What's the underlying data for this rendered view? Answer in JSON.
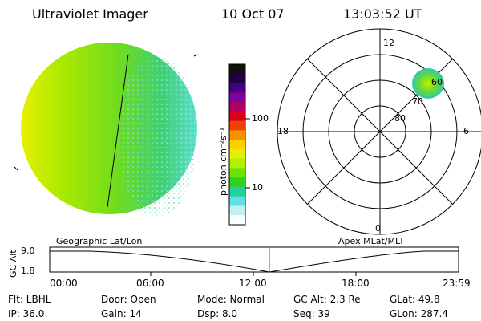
{
  "header": {
    "instrument": "Ultraviolet Imager",
    "date": "10 Oct 07",
    "time": "13:03:52 UT"
  },
  "colorbar": {
    "unit_label": "photon cm⁻²s⁻¹",
    "ticks": [
      "100",
      "10"
    ],
    "colors": [
      "#101010",
      "#200040",
      "#400080",
      "#8000a0",
      "#b00060",
      "#d80020",
      "#f04000",
      "#f89000",
      "#f8d000",
      "#e0f000",
      "#b0f000",
      "#70e000",
      "#30d020",
      "#20d0a0",
      "#60e0e0",
      "#c0f0f0",
      "#ffffff"
    ]
  },
  "polar": {
    "mlt_labels": {
      "top": "12",
      "left": "18",
      "right": "6",
      "bottom": "0"
    },
    "lat_labels": [
      "60",
      "70",
      "80"
    ]
  },
  "timeline": {
    "left_label": "Geographic Lat/Lon",
    "right_label": "Apex MLat/MLT",
    "axis_title": "GC Alt",
    "y_ticks": [
      "9.0",
      "1.8"
    ],
    "x_ticks": [
      "00:00",
      "06:00",
      "12:00",
      "18:00",
      "23:59"
    ],
    "marker_color": "#d02020"
  },
  "status": {
    "flt": "Flt: LBHL",
    "door": "Door: Open",
    "mode": "Mode: Normal",
    "gcalt": "GC Alt: 2.3 Re",
    "glat": "GLat:  49.8",
    "ip": "IP: 36.0",
    "gain": "Gain: 14",
    "dsp": "Dsp:     8.0",
    "seq": "Seq: 39",
    "glon": "GLon: 287.4"
  }
}
